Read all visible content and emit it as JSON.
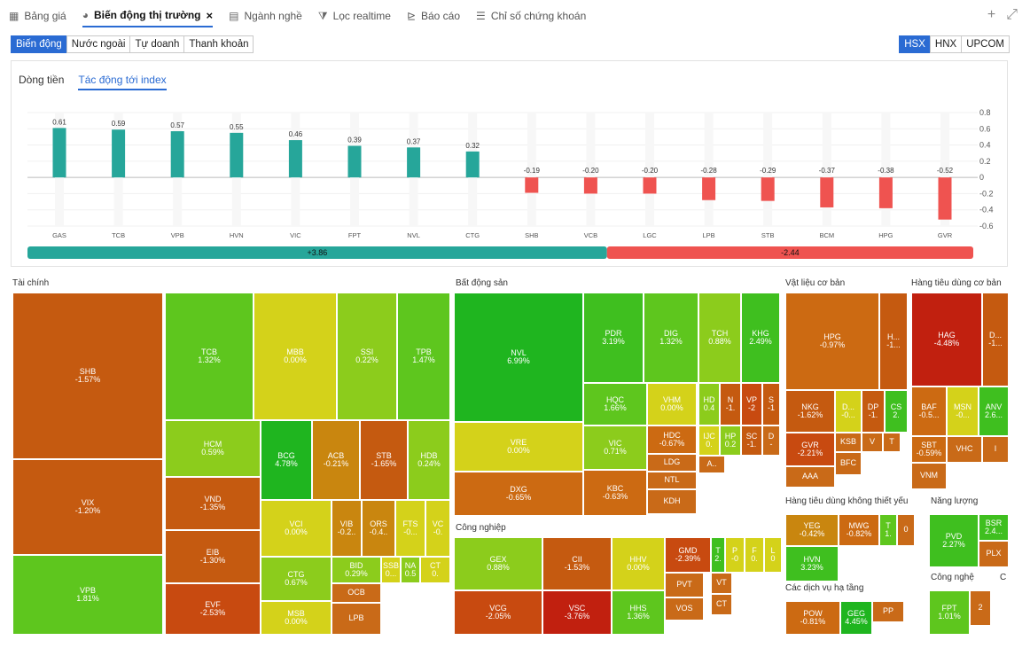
{
  "tabs": [
    {
      "label": "Bảng giá",
      "icon": "table-icon",
      "active": false
    },
    {
      "label": "Biến động thị trường",
      "icon": "pie-chart-icon",
      "active": true
    },
    {
      "label": "Ngành nghề",
      "icon": "list-icon",
      "active": false
    },
    {
      "label": "Lọc realtime",
      "icon": "filter-icon",
      "active": false
    },
    {
      "label": "Báo cáo",
      "icon": "report-icon",
      "active": false
    },
    {
      "label": "Chỉ số chứng khoán",
      "icon": "index-icon",
      "active": false
    }
  ],
  "close_glyph": "×",
  "top_actions": {
    "add": "+",
    "expand": "⤢"
  },
  "subtabs": [
    "Biến động",
    "Nước ngoài",
    "Tự doanh",
    "Thanh khoản"
  ],
  "exchanges": [
    "HSX",
    "HNX",
    "UPCOM"
  ],
  "panel_tabs": [
    "Dòng tiền",
    "Tác động tới index"
  ],
  "summary": {
    "positive": "+3.86",
    "negative": "-2.44"
  },
  "colors": {
    "up": "#26a69a",
    "down": "#ef5350",
    "accent": "#2a6bd3"
  },
  "chart_data": {
    "type": "bar",
    "categories": [
      "GAS",
      "TCB",
      "VPB",
      "HVN",
      "VIC",
      "FPT",
      "NVL",
      "CTG",
      "SHB",
      "VCB",
      "LGC",
      "LPB",
      "STB",
      "BCM",
      "HPG",
      "GVR"
    ],
    "values": [
      0.61,
      0.59,
      0.57,
      0.55,
      0.46,
      0.39,
      0.37,
      0.32,
      -0.19,
      -0.2,
      -0.2,
      -0.28,
      -0.29,
      -0.37,
      -0.38,
      -0.52
    ],
    "value_labels": [
      "0.61",
      "0.59",
      "0.57",
      "0.55",
      "0.46",
      "0.39",
      "0.37",
      "0.32",
      "-0.19",
      "-0.20",
      "-0.20",
      "-0.28",
      "-0.29",
      "-0.37",
      "-0.38",
      "-0.52"
    ],
    "yticks": [
      "0.8",
      "0.6",
      "0.4",
      "0.2",
      "0",
      "-0.2",
      "-0.4",
      "-0.6"
    ],
    "ylim": [
      -0.6,
      0.8
    ],
    "title": "",
    "xlabel": "",
    "ylabel": ""
  },
  "sectors": [
    {
      "title": "Tài chính",
      "cells": [
        {
          "t": "SHB",
          "v": "-1.57%"
        },
        {
          "t": "VIX",
          "v": "-1.20%"
        },
        {
          "t": "VPB",
          "v": "1.81%"
        },
        {
          "t": "TCB",
          "v": "1.32%"
        },
        {
          "t": "MBB",
          "v": "0.00%"
        },
        {
          "t": "SSI",
          "v": "0.22%"
        },
        {
          "t": "TPB",
          "v": "1.47%"
        },
        {
          "t": "HCM",
          "v": "0.59%"
        },
        {
          "t": "BCG",
          "v": "4.78%"
        },
        {
          "t": "ACB",
          "v": "-0.21%"
        },
        {
          "t": "STB",
          "v": "-1.65%"
        },
        {
          "t": "HDB",
          "v": "0.24%"
        },
        {
          "t": "VND",
          "v": "-1.35%"
        },
        {
          "t": "EIB",
          "v": "-1.30%"
        },
        {
          "t": "EVF",
          "v": "-2.53%"
        },
        {
          "t": "VCI",
          "v": "0.00%"
        },
        {
          "t": "VIB",
          "v": "-0.2.."
        },
        {
          "t": "ORS",
          "v": "-0.4.."
        },
        {
          "t": "FTS",
          "v": "-0..."
        },
        {
          "t": "VC",
          "v": "-0."
        },
        {
          "t": "CTG",
          "v": "0.67%"
        },
        {
          "t": "BID",
          "v": "0.29%"
        },
        {
          "t": "SSB",
          "v": "0..."
        },
        {
          "t": "NA",
          "v": "0.5"
        },
        {
          "t": "CT",
          "v": "0."
        },
        {
          "t": "OCB",
          "v": ""
        },
        {
          "t": "MSB",
          "v": "0.00%"
        },
        {
          "t": "LPB",
          "v": ""
        }
      ]
    },
    {
      "title": "Bất động sản",
      "cells": [
        {
          "t": "NVL",
          "v": "6.99%"
        },
        {
          "t": "VRE",
          "v": "0.00%"
        },
        {
          "t": "DXG",
          "v": "-0.65%"
        },
        {
          "t": "PDR",
          "v": "3.19%"
        },
        {
          "t": "DIG",
          "v": "1.32%"
        },
        {
          "t": "TCH",
          "v": "0.88%"
        },
        {
          "t": "KHG",
          "v": "2.49%"
        },
        {
          "t": "HQC",
          "v": "1.66%"
        },
        {
          "t": "VHM",
          "v": "0.00%"
        },
        {
          "t": "HD",
          "v": "0.4"
        },
        {
          "t": "N",
          "v": "-1."
        },
        {
          "t": "VP",
          "v": "-2"
        },
        {
          "t": "S",
          "v": "-1"
        },
        {
          "t": "VIC",
          "v": "0.71%"
        },
        {
          "t": "HDC",
          "v": "-0.67%"
        },
        {
          "t": "IJC",
          "v": "0."
        },
        {
          "t": "HP",
          "v": "0.2"
        },
        {
          "t": "SC",
          "v": "-1."
        },
        {
          "t": "D",
          "v": "-"
        },
        {
          "t": "LDG",
          "v": ""
        },
        {
          "t": "A..",
          "v": ""
        },
        {
          "t": "KBC",
          "v": "-0.63%"
        },
        {
          "t": "NTL",
          "v": ""
        },
        {
          "t": "KDH",
          "v": ""
        }
      ]
    },
    {
      "title": "Vật liệu cơ bản",
      "cells": [
        {
          "t": "HPG",
          "v": "-0.97%"
        },
        {
          "t": "H...",
          "v": "-1..."
        },
        {
          "t": "NKG",
          "v": "-1.62%"
        },
        {
          "t": "D...",
          "v": "-0..."
        },
        {
          "t": "DP",
          "v": "-1."
        },
        {
          "t": "CS",
          "v": "2."
        },
        {
          "t": "GVR",
          "v": "-2.21%"
        },
        {
          "t": "KSB",
          "v": ""
        },
        {
          "t": "V",
          "v": ""
        },
        {
          "t": "T",
          "v": ""
        },
        {
          "t": "BFC",
          "v": ""
        },
        {
          "t": "AAA",
          "v": ""
        }
      ]
    },
    {
      "title": "Hàng tiêu dùng cơ bản",
      "cells": [
        {
          "t": "HAG",
          "v": "-4.48%"
        },
        {
          "t": "D...",
          "v": "-1..."
        },
        {
          "t": "BAF",
          "v": "-0.5..."
        },
        {
          "t": "MSN",
          "v": "-0..."
        },
        {
          "t": "ANV",
          "v": "2.6..."
        },
        {
          "t": "SBT",
          "v": "-0.59%"
        },
        {
          "t": "VHC",
          "v": ""
        },
        {
          "t": "I",
          "v": ""
        },
        {
          "t": "VNM",
          "v": ""
        }
      ]
    },
    {
      "title": "Công nghiệp",
      "cells": [
        {
          "t": "GEX",
          "v": "0.88%"
        },
        {
          "t": "CII",
          "v": "-1.53%"
        },
        {
          "t": "HHV",
          "v": "0.00%"
        },
        {
          "t": "GMD",
          "v": "-2.39%"
        },
        {
          "t": "T",
          "v": "2."
        },
        {
          "t": "P",
          "v": "-0"
        },
        {
          "t": "F",
          "v": "0."
        },
        {
          "t": "L",
          "v": "0"
        },
        {
          "t": "VT",
          "v": ""
        },
        {
          "t": "PVT",
          "v": ""
        },
        {
          "t": "CT",
          "v": ""
        },
        {
          "t": "VCG",
          "v": "-2.05%"
        },
        {
          "t": "VSC",
          "v": "-3.76%"
        },
        {
          "t": "HHS",
          "v": "1.36%"
        },
        {
          "t": "VOS",
          "v": ""
        }
      ]
    },
    {
      "title": "Hàng tiêu dùng không thiết yếu",
      "cells": [
        {
          "t": "YEG",
          "v": "-0.42%"
        },
        {
          "t": "MWG",
          "v": "-0.82%"
        },
        {
          "t": "T",
          "v": "1."
        },
        {
          "t": "0",
          "v": ""
        },
        {
          "t": "HVN",
          "v": "3.23%"
        }
      ]
    },
    {
      "title": "Năng lượng",
      "cells": [
        {
          "t": "PVD",
          "v": "2.27%"
        },
        {
          "t": "BSR",
          "v": "2.4..."
        },
        {
          "t": "PLX",
          "v": ""
        }
      ]
    },
    {
      "title": "Các dịch vụ hạ tầng",
      "cells": [
        {
          "t": "POW",
          "v": "-0.81%"
        },
        {
          "t": "GEG",
          "v": "4.45%"
        },
        {
          "t": "PP",
          "v": ""
        }
      ]
    },
    {
      "title": "Công nghệ",
      "cells": [
        {
          "t": "FPT",
          "v": "1.01%"
        },
        {
          "t": "2",
          "v": ""
        }
      ]
    },
    {
      "title": "C",
      "cells": []
    }
  ]
}
